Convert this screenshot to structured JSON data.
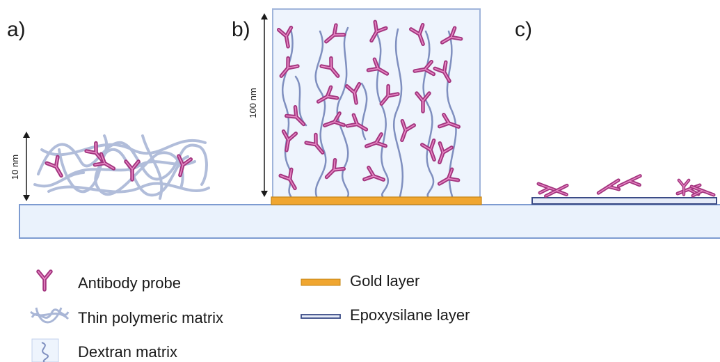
{
  "panels": {
    "a": "a)",
    "b": "b)",
    "c": "c)"
  },
  "dimensions": {
    "a_height": "10 nm",
    "b_height": "100 nm"
  },
  "legend": {
    "antibody": "Antibody probe",
    "polymeric": "Thin polymeric matrix",
    "dextran": "Dextran matrix",
    "gold": "Gold layer",
    "epoxysilane": "Epoxysilane layer"
  },
  "colors": {
    "antibody": "#a3357f",
    "antibody_inner": "#e98ac6",
    "substrate_fill": "#eaf2fc",
    "substrate_stroke": "#7d9bd0",
    "polymer": "#a9b6d6",
    "dextran_fill": "#eef4fd",
    "dextran_chain": "#7f8fbf",
    "gold": "#f0a630",
    "epoxysilane": "#3b4b86"
  }
}
